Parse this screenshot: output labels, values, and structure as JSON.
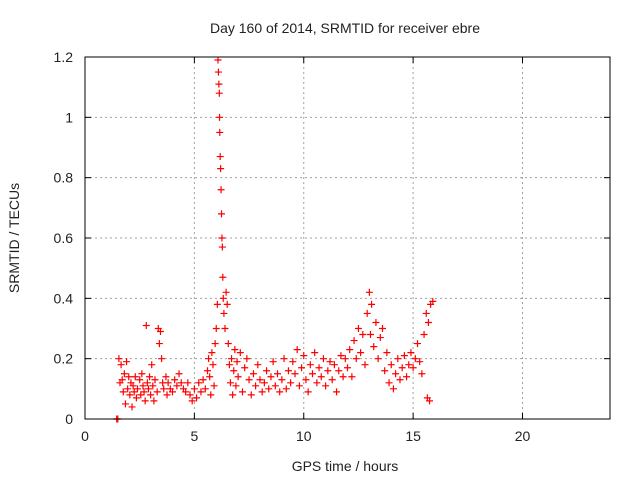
{
  "chart_data": {
    "type": "scatter",
    "title": "Day 160 of 2014, SRMTID for receiver ebre",
    "xlabel": "GPS time / hours",
    "ylabel": "SRMTID / TECUs",
    "xlim": [
      0,
      24
    ],
    "ylim": [
      0,
      1.2
    ],
    "xticks": [
      0,
      5,
      10,
      15,
      20
    ],
    "xtick_labels": [
      "0",
      "5",
      "10",
      "15",
      "20"
    ],
    "yticks": [
      0,
      0.2,
      0.4,
      0.6,
      0.8,
      1.0,
      1.2
    ],
    "ytick_labels": [
      "0",
      "0.2",
      "0.4",
      "0.6",
      "0.8",
      "1",
      "1.2"
    ],
    "grid": true,
    "marker": "plus",
    "series": [
      {
        "name": "SRMTID",
        "color": "#ff0000",
        "points": [
          [
            1.45,
            0.0
          ],
          [
            1.5,
            0.0
          ],
          [
            1.55,
            0.2
          ],
          [
            1.6,
            0.12
          ],
          [
            1.65,
            0.18
          ],
          [
            1.7,
            0.13
          ],
          [
            1.75,
            0.09
          ],
          [
            1.8,
            0.15
          ],
          [
            1.85,
            0.05
          ],
          [
            1.9,
            0.19
          ],
          [
            1.95,
            0.1
          ],
          [
            2.0,
            0.14
          ],
          [
            2.05,
            0.08
          ],
          [
            2.1,
            0.12
          ],
          [
            2.15,
            0.04
          ],
          [
            2.2,
            0.11
          ],
          [
            2.25,
            0.09
          ],
          [
            2.3,
            0.14
          ],
          [
            2.35,
            0.07
          ],
          [
            2.4,
            0.1
          ],
          [
            2.5,
            0.13
          ],
          [
            2.55,
            0.08
          ],
          [
            2.6,
            0.15
          ],
          [
            2.65,
            0.11
          ],
          [
            2.7,
            0.09
          ],
          [
            2.75,
            0.06
          ],
          [
            2.8,
            0.31
          ],
          [
            2.85,
            0.12
          ],
          [
            2.9,
            0.1
          ],
          [
            2.95,
            0.14
          ],
          [
            3.0,
            0.08
          ],
          [
            3.05,
            0.18
          ],
          [
            3.1,
            0.11
          ],
          [
            3.15,
            0.06
          ],
          [
            3.2,
            0.13
          ],
          [
            3.3,
            0.09
          ],
          [
            3.35,
            0.3
          ],
          [
            3.4,
            0.25
          ],
          [
            3.45,
            0.29
          ],
          [
            3.5,
            0.2
          ],
          [
            3.55,
            0.12
          ],
          [
            3.6,
            0.1
          ],
          [
            3.7,
            0.14
          ],
          [
            3.75,
            0.08
          ],
          [
            3.8,
            0.12
          ],
          [
            3.9,
            0.1
          ],
          [
            4.0,
            0.09
          ],
          [
            4.1,
            0.13
          ],
          [
            4.2,
            0.11
          ],
          [
            4.3,
            0.15
          ],
          [
            4.4,
            0.12
          ],
          [
            4.5,
            0.1
          ],
          [
            4.6,
            0.09
          ],
          [
            4.7,
            0.12
          ],
          [
            4.8,
            0.08
          ],
          [
            4.9,
            0.06
          ],
          [
            5.0,
            0.1
          ],
          [
            5.1,
            0.07
          ],
          [
            5.2,
            0.12
          ],
          [
            5.3,
            0.09
          ],
          [
            5.4,
            0.13
          ],
          [
            5.5,
            0.1
          ],
          [
            5.6,
            0.16
          ],
          [
            5.65,
            0.2
          ],
          [
            5.7,
            0.14
          ],
          [
            5.75,
            0.08
          ],
          [
            5.8,
            0.22
          ],
          [
            5.85,
            0.18
          ],
          [
            5.9,
            0.11
          ],
          [
            5.95,
            0.25
          ],
          [
            6.0,
            0.3
          ],
          [
            6.05,
            0.38
          ],
          [
            6.08,
            1.19
          ],
          [
            6.1,
            1.15
          ],
          [
            6.12,
            1.11
          ],
          [
            6.14,
            1.08
          ],
          [
            6.15,
            1.0
          ],
          [
            6.16,
            0.95
          ],
          [
            6.18,
            0.87
          ],
          [
            6.2,
            0.83
          ],
          [
            6.22,
            0.76
          ],
          [
            6.24,
            0.68
          ],
          [
            6.26,
            0.6
          ],
          [
            6.28,
            0.57
          ],
          [
            6.3,
            0.47
          ],
          [
            6.32,
            0.4
          ],
          [
            6.35,
            0.35
          ],
          [
            6.4,
            0.3
          ],
          [
            6.45,
            0.42
          ],
          [
            6.5,
            0.38
          ],
          [
            6.55,
            0.25
          ],
          [
            6.6,
            0.18
          ],
          [
            6.65,
            0.12
          ],
          [
            6.7,
            0.2
          ],
          [
            6.75,
            0.08
          ],
          [
            6.8,
            0.16
          ],
          [
            6.85,
            0.23
          ],
          [
            6.9,
            0.11
          ],
          [
            6.95,
            0.19
          ],
          [
            7.0,
            0.14
          ],
          [
            7.1,
            0.22
          ],
          [
            7.2,
            0.09
          ],
          [
            7.3,
            0.17
          ],
          [
            7.4,
            0.2
          ],
          [
            7.5,
            0.13
          ],
          [
            7.6,
            0.08
          ],
          [
            7.7,
            0.15
          ],
          [
            7.8,
            0.11
          ],
          [
            7.9,
            0.18
          ],
          [
            8.0,
            0.13
          ],
          [
            8.1,
            0.09
          ],
          [
            8.2,
            0.12
          ],
          [
            8.3,
            0.16
          ],
          [
            8.4,
            0.1
          ],
          [
            8.5,
            0.14
          ],
          [
            8.6,
            0.19
          ],
          [
            8.7,
            0.11
          ],
          [
            8.8,
            0.15
          ],
          [
            8.9,
            0.09
          ],
          [
            9.0,
            0.13
          ],
          [
            9.1,
            0.2
          ],
          [
            9.2,
            0.1
          ],
          [
            9.3,
            0.16
          ],
          [
            9.4,
            0.12
          ],
          [
            9.5,
            0.19
          ],
          [
            9.6,
            0.15
          ],
          [
            9.7,
            0.23
          ],
          [
            9.8,
            0.11
          ],
          [
            9.9,
            0.17
          ],
          [
            10.0,
            0.21
          ],
          [
            10.1,
            0.13
          ],
          [
            10.2,
            0.09
          ],
          [
            10.3,
            0.18
          ],
          [
            10.4,
            0.15
          ],
          [
            10.5,
            0.22
          ],
          [
            10.6,
            0.12
          ],
          [
            10.7,
            0.17
          ],
          [
            10.8,
            0.14
          ],
          [
            10.9,
            0.2
          ],
          [
            11.0,
            0.11
          ],
          [
            11.1,
            0.16
          ],
          [
            11.2,
            0.19
          ],
          [
            11.3,
            0.13
          ],
          [
            11.4,
            0.18
          ],
          [
            11.5,
            0.09
          ],
          [
            11.6,
            0.16
          ],
          [
            11.7,
            0.21
          ],
          [
            11.8,
            0.14
          ],
          [
            11.9,
            0.2
          ],
          [
            12.0,
            0.17
          ],
          [
            12.1,
            0.23
          ],
          [
            12.2,
            0.14
          ],
          [
            12.3,
            0.26
          ],
          [
            12.4,
            0.2
          ],
          [
            12.5,
            0.3
          ],
          [
            12.6,
            0.22
          ],
          [
            12.7,
            0.28
          ],
          [
            12.8,
            0.18
          ],
          [
            12.9,
            0.35
          ],
          [
            13.0,
            0.42
          ],
          [
            13.05,
            0.28
          ],
          [
            13.1,
            0.38
          ],
          [
            13.2,
            0.24
          ],
          [
            13.3,
            0.32
          ],
          [
            13.4,
            0.2
          ],
          [
            13.5,
            0.27
          ],
          [
            13.6,
            0.3
          ],
          [
            13.7,
            0.16
          ],
          [
            13.8,
            0.22
          ],
          [
            13.9,
            0.12
          ],
          [
            14.0,
            0.18
          ],
          [
            14.1,
            0.1
          ],
          [
            14.2,
            0.15
          ],
          [
            14.3,
            0.2
          ],
          [
            14.4,
            0.13
          ],
          [
            14.5,
            0.17
          ],
          [
            14.6,
            0.21
          ],
          [
            14.7,
            0.14
          ],
          [
            14.8,
            0.18
          ],
          [
            14.9,
            0.22
          ],
          [
            15.0,
            0.17
          ],
          [
            15.1,
            0.2
          ],
          [
            15.2,
            0.25
          ],
          [
            15.3,
            0.19
          ],
          [
            15.4,
            0.15
          ],
          [
            15.5,
            0.28
          ],
          [
            15.6,
            0.35
          ],
          [
            15.65,
            0.07
          ],
          [
            15.7,
            0.32
          ],
          [
            15.75,
            0.06
          ],
          [
            15.8,
            0.38
          ],
          [
            15.9,
            0.39
          ]
        ]
      }
    ]
  }
}
